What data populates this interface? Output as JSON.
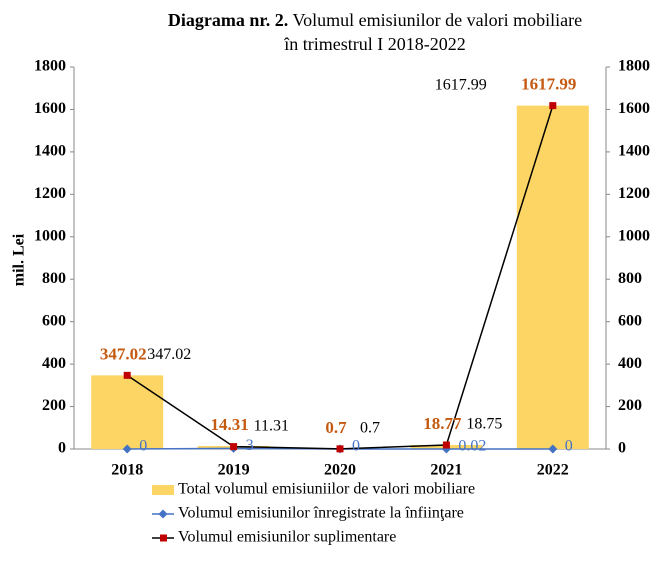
{
  "chart_data": {
    "type": "bar-line",
    "title_bold": "Diagrama nr. 2.",
    "title": "Volumul emisiunilor de valori mobiliare",
    "subtitle": "în trimestrul I 2018-2022",
    "y_label": "mil. Lei",
    "categories": [
      "2018",
      "2019",
      "2020",
      "2021",
      "2022"
    ],
    "series": [
      {
        "name": "Total volumul emisiuniilor de valori mobiliare",
        "type": "bar",
        "color": "#fcd565",
        "label_color": "#c55a11",
        "values": [
          347.02,
          14.31,
          0.7,
          18.77,
          1617.99
        ]
      },
      {
        "name": "Volumul emisiunilor înregistrate la înfiinţare",
        "type": "line",
        "color": "#4472c4",
        "label_color": "#4472c4",
        "values": [
          0,
          3,
          0,
          0.02,
          0
        ]
      },
      {
        "name": "Volumul emisiunilor suplimentare",
        "type": "line",
        "color": "#000000",
        "marker_color": "#c00000",
        "label_color": "#000000",
        "values": [
          347.02,
          11.31,
          0.7,
          18.75,
          1617.99
        ]
      }
    ],
    "ylim": [
      0,
      1800
    ],
    "yticks": [
      0,
      200,
      400,
      600,
      800,
      1000,
      1200,
      1400,
      1600,
      1800
    ],
    "y2lim": [
      0,
      1800
    ],
    "y2ticks": [
      0,
      200,
      400,
      600,
      800,
      1000,
      1200,
      1400,
      1600,
      1800
    ]
  }
}
